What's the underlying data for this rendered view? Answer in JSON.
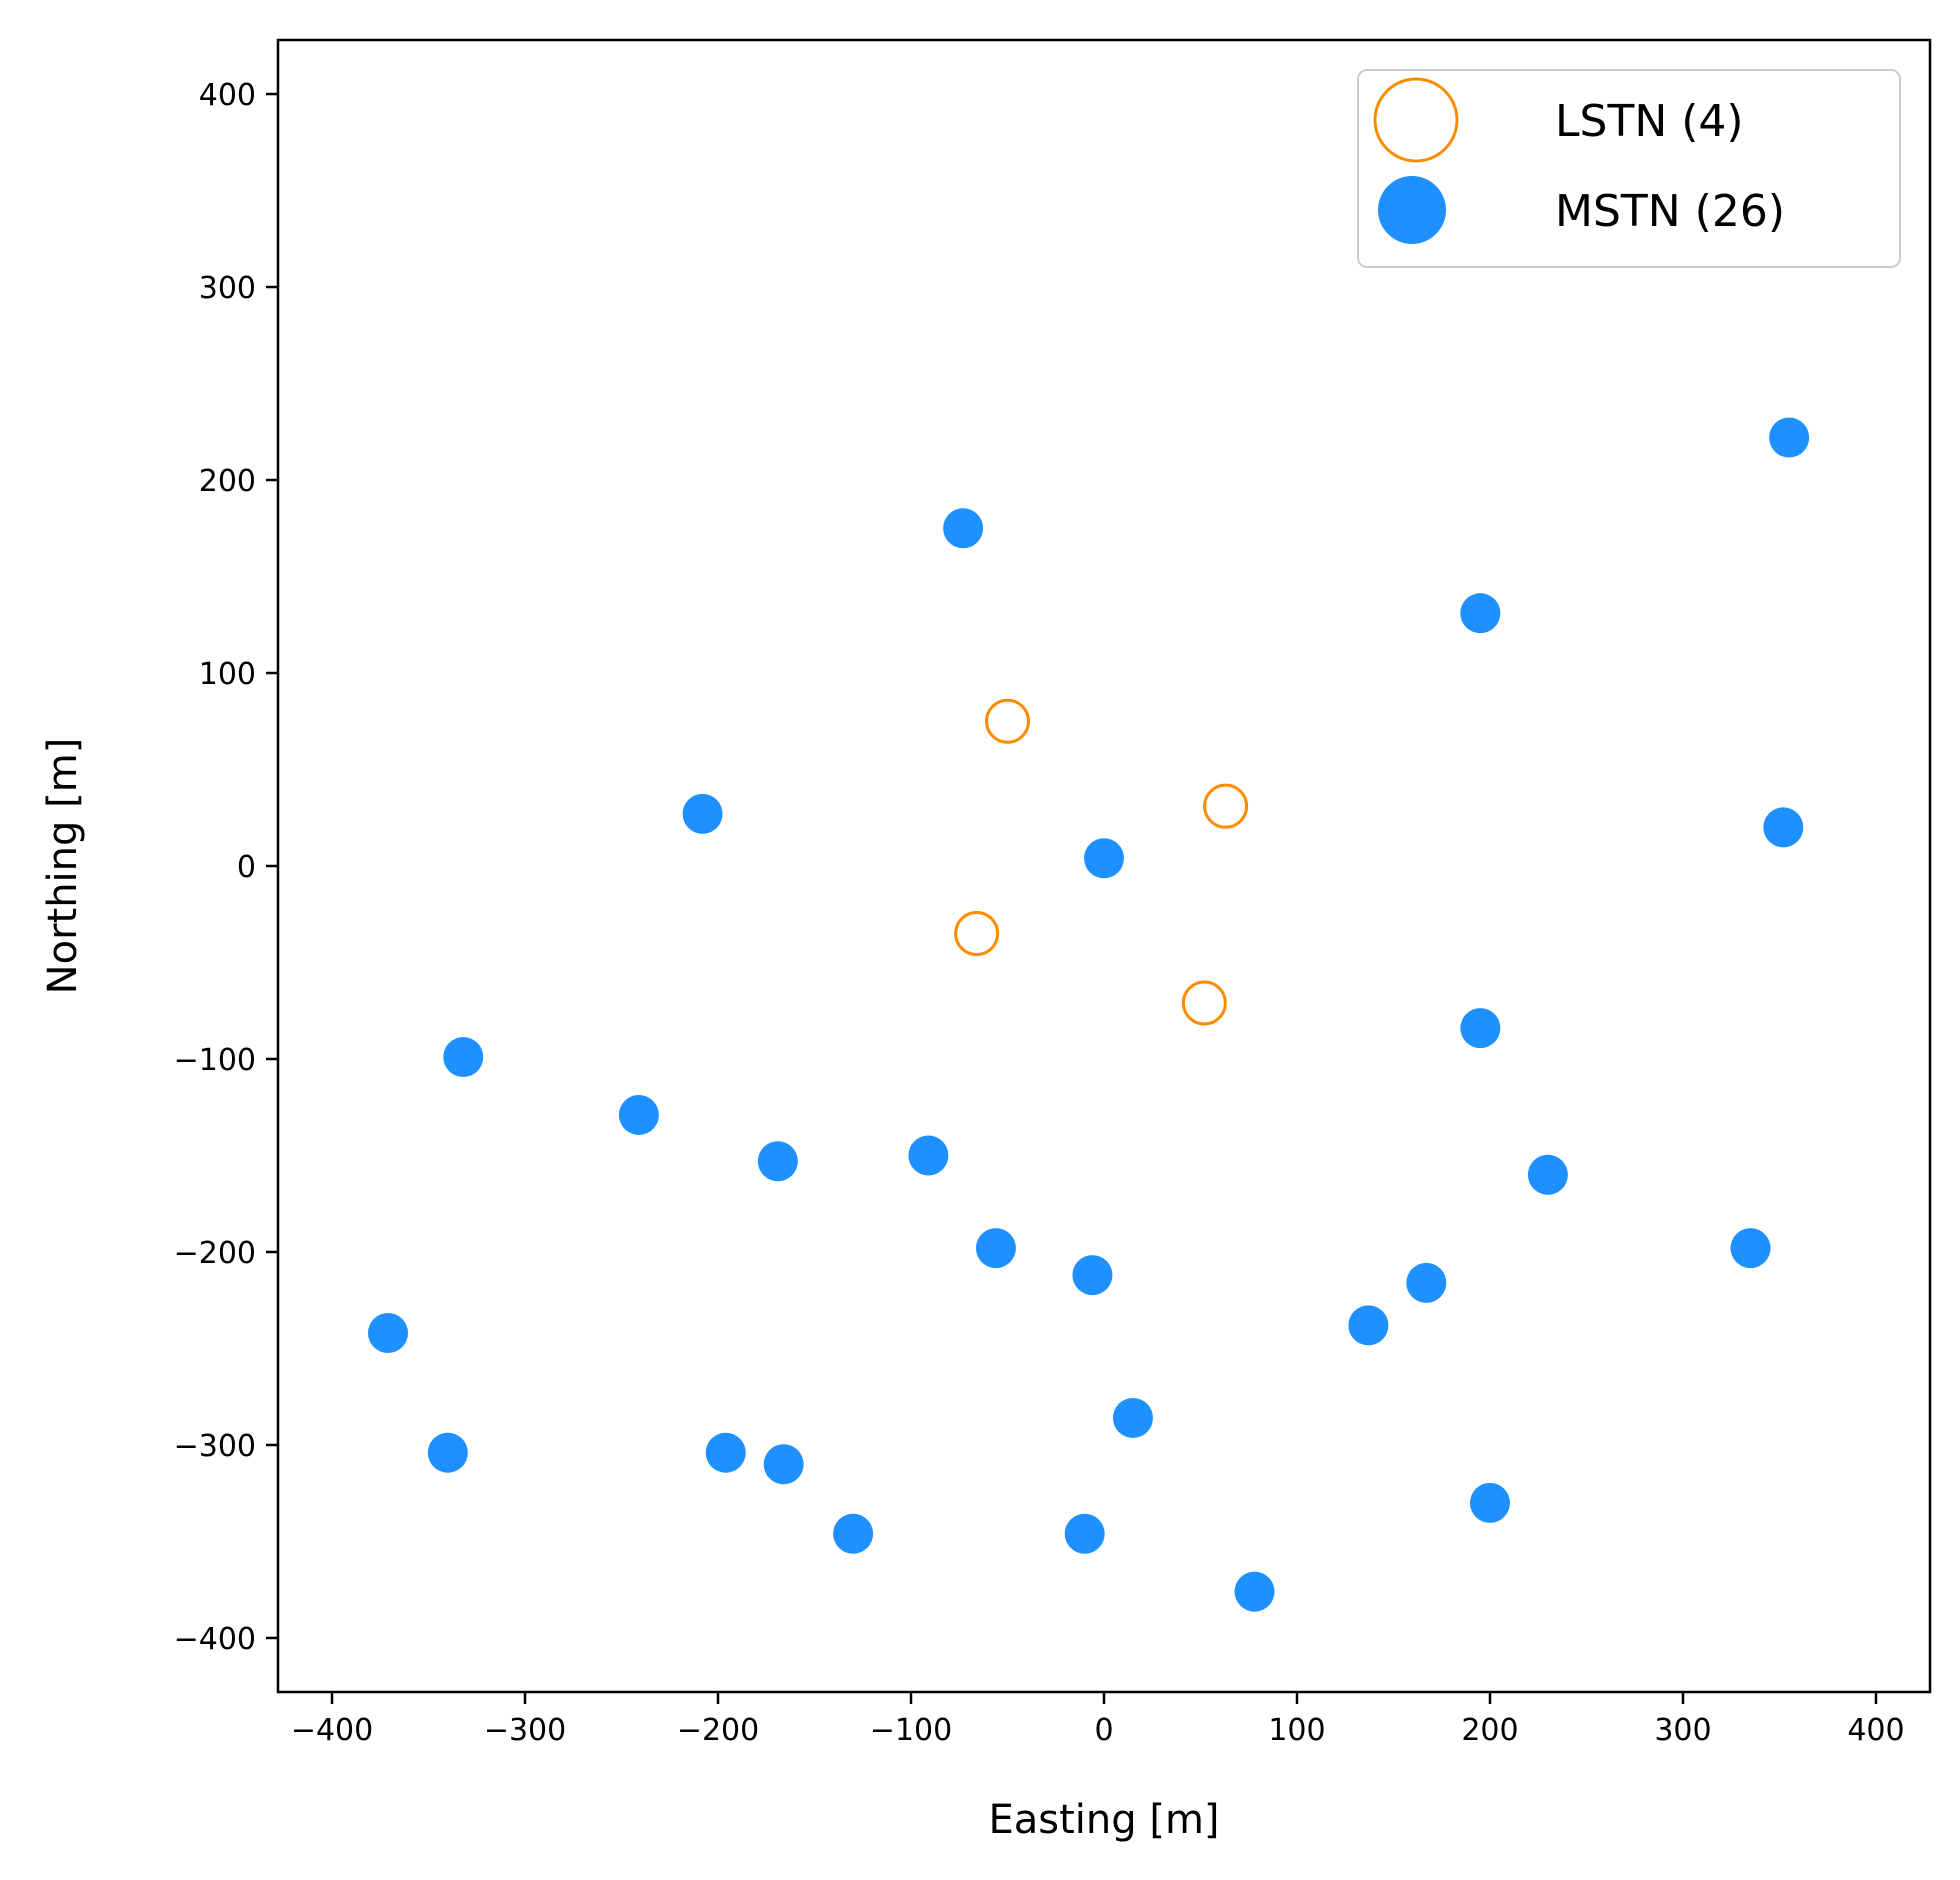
{
  "chart_data": {
    "type": "scatter",
    "title": "",
    "xlabel": "Easting [m]",
    "ylabel": "Northing [m]",
    "xlim": [
      -428,
      428
    ],
    "ylim": [
      -428,
      428
    ],
    "xticks": [
      -400,
      -300,
      -200,
      -100,
      0,
      100,
      200,
      300,
      400
    ],
    "yticks": [
      -400,
      -300,
      -200,
      -100,
      0,
      100,
      200,
      300,
      400
    ],
    "tick_labels": {
      "x": [
        "−400",
        "−300",
        "−200",
        "−100",
        "0",
        "100",
        "200",
        "300",
        "400"
      ],
      "y": [
        "−400",
        "−300",
        "−200",
        "−100",
        "0",
        "100",
        "200",
        "300",
        "400"
      ]
    },
    "grid": false,
    "legend_position": "top-right",
    "series": [
      {
        "name": "LSTN (4)",
        "marker": "open-circle",
        "color": "#FF8C00",
        "points": [
          {
            "x": -50,
            "y": 75
          },
          {
            "x": 63,
            "y": 31
          },
          {
            "x": -66,
            "y": -35
          },
          {
            "x": 52,
            "y": -71
          }
        ]
      },
      {
        "name": "MSTN (26)",
        "marker": "filled-circle",
        "color": "#1E90FF",
        "points": [
          {
            "x": 355,
            "y": 222
          },
          {
            "x": -73,
            "y": 175
          },
          {
            "x": 195,
            "y": 131
          },
          {
            "x": -208,
            "y": 27
          },
          {
            "x": 0,
            "y": 4
          },
          {
            "x": 352,
            "y": 20
          },
          {
            "x": 195,
            "y": -84
          },
          {
            "x": -332,
            "y": -99
          },
          {
            "x": -241,
            "y": -129
          },
          {
            "x": -169,
            "y": -153
          },
          {
            "x": -91,
            "y": -150
          },
          {
            "x": 230,
            "y": -160
          },
          {
            "x": -56,
            "y": -198
          },
          {
            "x": -6,
            "y": -212
          },
          {
            "x": 335,
            "y": -198
          },
          {
            "x": 167,
            "y": -216
          },
          {
            "x": 137,
            "y": -238
          },
          {
            "x": -371,
            "y": -242
          },
          {
            "x": 15,
            "y": -286
          },
          {
            "x": -340,
            "y": -304
          },
          {
            "x": -196,
            "y": -304
          },
          {
            "x": -166,
            "y": -310
          },
          {
            "x": -130,
            "y": -346
          },
          {
            "x": -10,
            "y": -346
          },
          {
            "x": 200,
            "y": -330
          },
          {
            "x": 78,
            "y": -376
          }
        ]
      }
    ]
  }
}
